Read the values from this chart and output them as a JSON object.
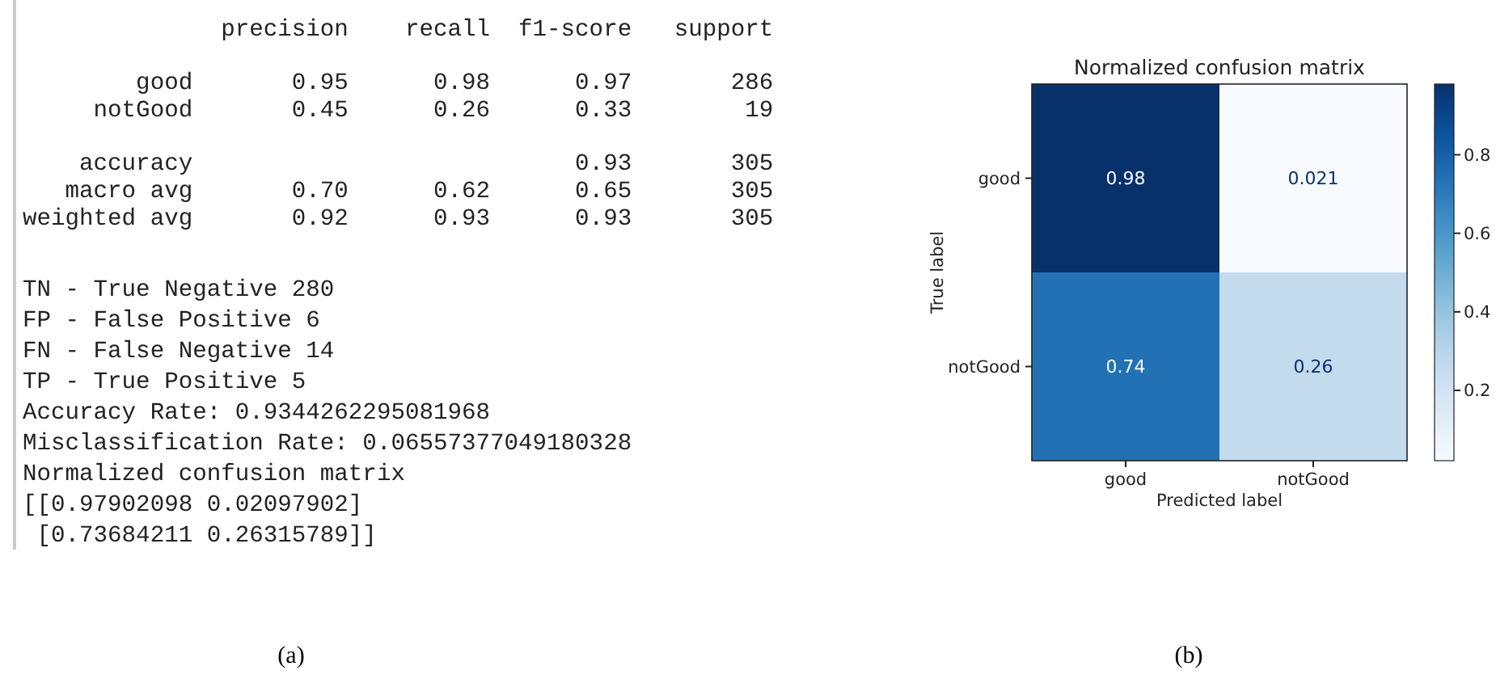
{
  "chart_data": [
    {
      "type": "other",
      "annotations": [
        "              precision    recall  f1-score   support",
        "        good       0.95      0.98      0.97       286",
        "     notGood       0.45      0.26      0.33        19",
        "    accuracy                           0.93       305",
        "   macro avg       0.70      0.62      0.65       305",
        "weighted avg       0.92      0.93      0.93       305",
        "TN - True Negative 280",
        "FP - False Positive 6",
        "FN - False Negative 14",
        "TP - True Positive 5",
        "Accuracy Rate: 0.9344262295081968",
        "Misclassification Rate: 0.06557377049180328",
        "Normalized confusion matrix",
        "[[0.97902098 0.02097902]",
        " [0.73684211 0.26315789]]",
        "(a)"
      ]
    },
    {
      "type": "heatmap",
      "title": "Normalized confusion matrix",
      "xlabel": "Predicted label",
      "ylabel": "True label",
      "categories": [
        "good",
        "notGood"
      ],
      "y_categories": [
        "good",
        "notGood"
      ],
      "cells": [
        [
          0.98,
          0.021
        ],
        [
          0.74,
          0.26
        ]
      ],
      "data_labels": true,
      "clim": [
        0.021,
        0.98
      ],
      "cticks": [
        0.2,
        0.4,
        0.6,
        0.8
      ],
      "annotations": [
        "(b)"
      ]
    }
  ]
}
